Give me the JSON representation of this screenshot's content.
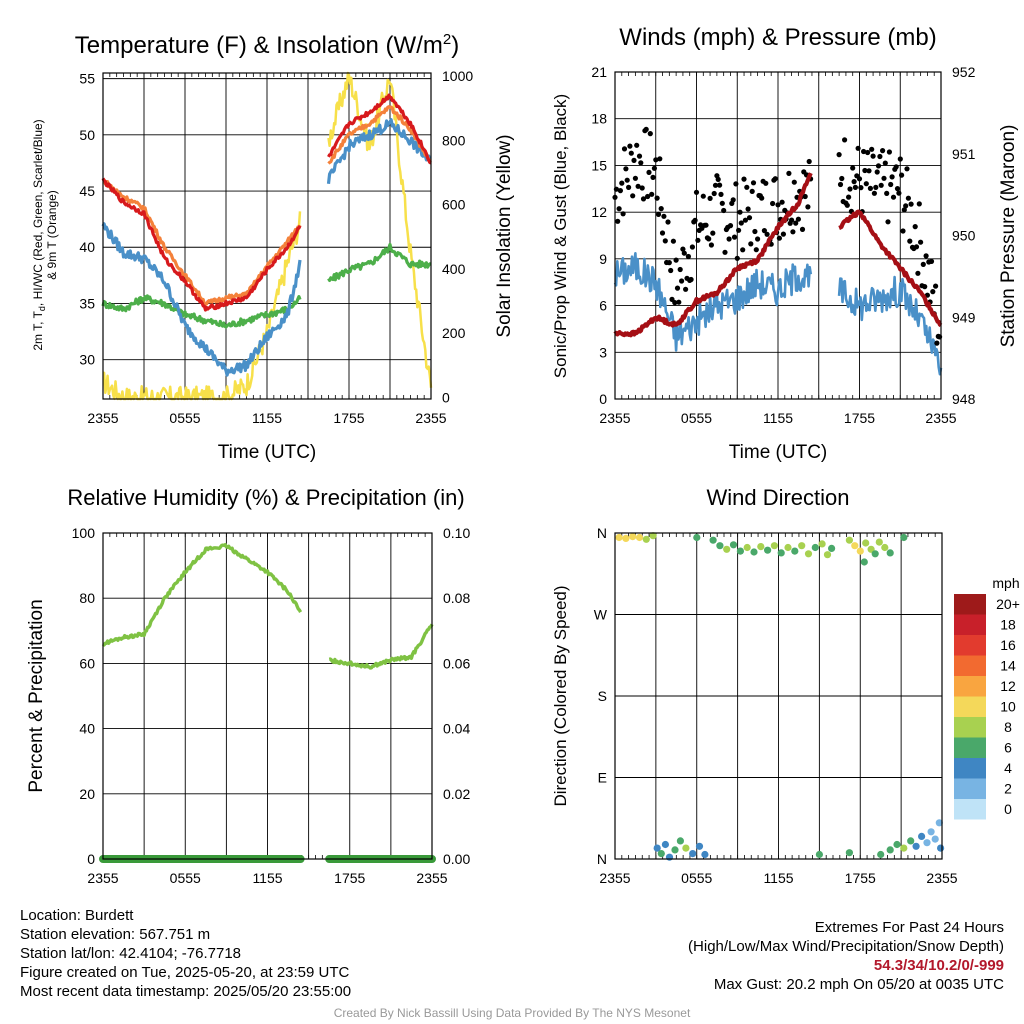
{
  "colors": {
    "red": "#d7191c",
    "orange": "#f4813a",
    "blue": "#4a90c8",
    "green": "#4daf4a",
    "yellow": "#f7e04a",
    "gust": "#000000",
    "pressure": "#a50f15",
    "rh": "#7fc243",
    "precip": "#3a9a3a"
  },
  "panels": {
    "temp": {
      "title": "Temperature (F) & Insolation (W/m",
      "title_sup": "2",
      "title_end": ")",
      "ylabel_line1": "2m T, T",
      "ylabel_line1_sub": "d",
      "ylabel_line1_end": ", HI/WC (Red, Green, Scarlet/Blue)",
      "ylabel_line2": "& 9m T (Orange)",
      "y2label": "Solar Insolation (Yellow)",
      "xlabel": "Time (UTC)"
    },
    "wind": {
      "title": "Winds (mph) & Pressure (mb)",
      "ylabel": "Sonic/Prop Wind & Gust (Blue, Black)",
      "y2label": "Station Pressure (Maroon)",
      "xlabel": "Time (UTC)"
    },
    "rh": {
      "title": "Relative Humidity (%) & Precipitation (in)",
      "ylabel": "Percent & Precipitation"
    },
    "dir": {
      "title": "Wind Direction",
      "ylabel": "Direction (Colored By Speed)"
    }
  },
  "legend": {
    "title": "mph",
    "labels": [
      "20+",
      "18",
      "16",
      "14",
      "12",
      "10",
      "8",
      "6",
      "4",
      "2",
      "0"
    ],
    "colors": [
      "#9e1a1a",
      "#c8202a",
      "#e23b2e",
      "#f26a30",
      "#f9a540",
      "#f4d85a",
      "#a8d150",
      "#4aa86a",
      "#3f86c3",
      "#78b4e3",
      "#bfe3f7"
    ]
  },
  "info": {
    "location": "Location: Burdett",
    "elevation": "Station elevation: 567.751 m",
    "latlon": "Station lat/lon: 42.4104; -76.7718",
    "created": "Figure created on Tue, 2025-05-20, at 23:59 UTC",
    "recent": "Most recent data timestamp: 2025/05/20 23:55:00",
    "extremes_title": "Extremes For Past 24 Hours",
    "extremes_sub": "(High/Low/Max Wind/Precipitation/Snow Depth)",
    "extremes_values": "54.3/34/10.2/0/-999",
    "max_gust": "Max Gust: 20.2 mph On 05/20 at 0035 UTC"
  },
  "credit": "Created By Nick Bassill Using Data Provided By The NYS Mesonet",
  "chart_data": [
    {
      "type": "line",
      "title": "Temperature (F) & Insolation (W/m2)",
      "xlabel": "Time (UTC)",
      "ylabel": "2m T, Td, HI/WC (Red, Green, Scarlet/Blue) & 9m T (Orange)",
      "y2label": "Solar Insolation (Yellow)",
      "x_ticks": [
        "2355",
        "0555",
        "1155",
        "1755",
        "2355"
      ],
      "x_hours": [
        0,
        1.5,
        3,
        4.5,
        6,
        7.5,
        9,
        10.5,
        12,
        13.5,
        14.5,
        15.5,
        16.5,
        18,
        19.5,
        21,
        22.5,
        24
      ],
      "y_ticks": [
        30,
        35,
        40,
        45,
        50,
        55
      ],
      "ylim": [
        26.5,
        55.5
      ],
      "y2_ticks": [
        0,
        200,
        400,
        600,
        800,
        1000
      ],
      "y2lim": [
        -5,
        1010
      ],
      "grid": true,
      "series": [
        {
          "name": "2m T (Red)",
          "color_key": "red",
          "values": [
            46,
            44,
            43,
            39,
            37,
            34.5,
            35,
            35.5,
            38,
            40,
            42,
            null,
            48,
            51,
            52,
            53.5,
            51,
            47.5
          ]
        },
        {
          "name": "9m T (Orange)",
          "color_key": "orange",
          "values": [
            46,
            44.5,
            43.5,
            40,
            37.5,
            35,
            35.5,
            35.8,
            38.3,
            40.5,
            42.2,
            null,
            47.5,
            50,
            51,
            52.5,
            50.5,
            47.5
          ]
        },
        {
          "name": "HI/WC (Blue)",
          "color_key": "blue",
          "values": [
            42,
            39.5,
            39,
            37,
            33,
            31,
            29,
            29.5,
            32,
            34,
            39,
            null,
            46,
            49,
            50,
            51,
            49.5,
            47.5
          ]
        },
        {
          "name": "Td (Green)",
          "color_key": "green",
          "values": [
            35,
            34.5,
            35.5,
            35,
            34,
            33.5,
            33,
            33.5,
            34,
            34.5,
            35.5,
            null,
            37,
            38,
            38.5,
            40,
            38.5,
            38.5
          ]
        },
        {
          "name": "Solar Insolation (Yellow)",
          "color_key": "yellow",
          "axis": "y2",
          "values": [
            50,
            0,
            0,
            0,
            0,
            0,
            0,
            40,
            200,
            420,
            560,
            null,
            800,
            1000,
            780,
            1000,
            450,
            30
          ]
        }
      ]
    },
    {
      "type": "line",
      "title": "Winds (mph) & Pressure (mb)",
      "xlabel": "Time (UTC)",
      "ylabel": "Sonic/Prop Wind & Gust (Blue, Black)",
      "y2label": "Station Pressure (Maroon)",
      "x_ticks": [
        "2355",
        "0555",
        "1155",
        "1755",
        "2355"
      ],
      "x_hours": [
        0,
        1.5,
        3,
        4.5,
        6,
        7.5,
        9,
        10.5,
        12,
        13.5,
        14.5,
        15.5,
        16.5,
        18,
        19.5,
        21,
        22.5,
        24
      ],
      "y_ticks": [
        0,
        3,
        6,
        9,
        12,
        15,
        18,
        21
      ],
      "ylim": [
        0,
        21
      ],
      "y2_ticks": [
        948,
        949,
        950,
        951,
        952
      ],
      "y2lim": [
        948,
        952
      ],
      "grid": true,
      "series": [
        {
          "name": "Sonic/Prop Wind (Blue)",
          "color_key": "blue",
          "values": [
            8,
            8.5,
            7.5,
            4,
            5,
            6,
            6.5,
            7.5,
            7,
            8,
            7.5,
            null,
            7,
            6,
            6.5,
            7,
            5,
            2
          ]
        },
        {
          "name": "Gust (Black)",
          "color_key": "gust",
          "render": "dots",
          "values": [
            13,
            15.5,
            14.5,
            7,
            11,
            12,
            11.5,
            12,
            12.5,
            13.5,
            13,
            null,
            15,
            14,
            13.5,
            13.5,
            10,
            4
          ]
        },
        {
          "name": "Station Pressure (Maroon)",
          "color_key": "pressure",
          "axis": "y2",
          "values": [
            948.8,
            948.8,
            949,
            948.9,
            949.2,
            949.3,
            949.6,
            949.7,
            950.1,
            950.4,
            950.8,
            null,
            950.1,
            950.3,
            949.9,
            949.6,
            949.3,
            948.9
          ]
        }
      ]
    },
    {
      "type": "line",
      "title": "Relative Humidity (%) & Precipitation (in)",
      "ylabel": "Percent & Precipitation",
      "x_ticks": [
        "2355",
        "0555",
        "1155",
        "1755",
        "2355"
      ],
      "x_hours": [
        0,
        1.5,
        3,
        4.5,
        6,
        7.5,
        9,
        10.5,
        12,
        13.5,
        14.5,
        15.5,
        16.5,
        18,
        19.5,
        21,
        22.5,
        24
      ],
      "y_ticks": [
        0,
        20,
        40,
        60,
        80,
        100
      ],
      "ylim": [
        0,
        100
      ],
      "y2_ticks": [
        "0.00",
        "0.02",
        "0.04",
        "0.06",
        "0.08",
        "0.10"
      ],
      "y2lim": [
        0,
        0.1
      ],
      "grid": true,
      "series": [
        {
          "name": "RH (%)",
          "color_key": "rh",
          "values": [
            66,
            68,
            69,
            80,
            88,
            95,
            96,
            92,
            88,
            82,
            75,
            null,
            61,
            60,
            59,
            61,
            62,
            72
          ]
        },
        {
          "name": "Precipitation (in)",
          "color_key": "precip",
          "axis": "y2",
          "values": [
            0,
            0,
            0,
            0,
            0,
            0,
            0,
            0,
            0,
            0,
            0,
            null,
            0,
            0,
            0,
            0,
            0,
            0
          ]
        }
      ]
    },
    {
      "type": "scatter",
      "title": "Wind Direction",
      "ylabel": "Direction (Colored By Speed)",
      "x_ticks": [
        "2355",
        "0555",
        "1155",
        "1755",
        "2355"
      ],
      "y_ticks": [
        "N",
        "E",
        "S",
        "W",
        "N"
      ],
      "ylim_degrees": [
        0,
        360
      ],
      "grid": true,
      "legend": "right",
      "points": [
        {
          "h": 0.3,
          "dir": 355,
          "mph": 9
        },
        {
          "h": 0.8,
          "dir": 354,
          "mph": 10
        },
        {
          "h": 1.3,
          "dir": 356,
          "mph": 9
        },
        {
          "h": 1.8,
          "dir": 355,
          "mph": 10
        },
        {
          "h": 2.3,
          "dir": 353,
          "mph": 8
        },
        {
          "h": 2.8,
          "dir": 357,
          "mph": 7
        },
        {
          "h": 3.1,
          "dir": 12,
          "mph": 4
        },
        {
          "h": 3.4,
          "dir": 6,
          "mph": 5
        },
        {
          "h": 3.7,
          "dir": 16,
          "mph": 4
        },
        {
          "h": 4.0,
          "dir": 2,
          "mph": 4
        },
        {
          "h": 4.4,
          "dir": 10,
          "mph": 5
        },
        {
          "h": 4.8,
          "dir": 20,
          "mph": 6
        },
        {
          "h": 5.2,
          "dir": 12,
          "mph": 7
        },
        {
          "h": 5.7,
          "dir": 6,
          "mph": 4
        },
        {
          "h": 6.2,
          "dir": 14,
          "mph": 4
        },
        {
          "h": 6.6,
          "dir": 5,
          "mph": 3
        },
        {
          "h": 6.0,
          "dir": 355,
          "mph": 6
        },
        {
          "h": 7.2,
          "dir": 352,
          "mph": 5
        },
        {
          "h": 7.7,
          "dir": 346,
          "mph": 6
        },
        {
          "h": 8.2,
          "dir": 342,
          "mph": 7
        },
        {
          "h": 8.7,
          "dir": 347,
          "mph": 6
        },
        {
          "h": 9.2,
          "dir": 340,
          "mph": 5
        },
        {
          "h": 9.7,
          "dir": 344,
          "mph": 7
        },
        {
          "h": 10.2,
          "dir": 339,
          "mph": 6
        },
        {
          "h": 10.7,
          "dir": 345,
          "mph": 8
        },
        {
          "h": 11.2,
          "dir": 341,
          "mph": 6
        },
        {
          "h": 11.7,
          "dir": 346,
          "mph": 7
        },
        {
          "h": 12.2,
          "dir": 338,
          "mph": 6
        },
        {
          "h": 12.7,
          "dir": 344,
          "mph": 8
        },
        {
          "h": 13.2,
          "dir": 340,
          "mph": 5
        },
        {
          "h": 13.7,
          "dir": 346,
          "mph": 7
        },
        {
          "h": 14.2,
          "dir": 337,
          "mph": 8
        },
        {
          "h": 14.7,
          "dir": 344,
          "mph": 6
        },
        {
          "h": 15.2,
          "dir": 348,
          "mph": 7
        },
        {
          "h": 15.6,
          "dir": 336,
          "mph": 8
        },
        {
          "h": 15.9,
          "dir": 343,
          "mph": 6
        },
        {
          "h": 17.2,
          "dir": 352,
          "mph": 7
        },
        {
          "h": 17.6,
          "dir": 346,
          "mph": 9
        },
        {
          "h": 18.0,
          "dir": 340,
          "mph": 10
        },
        {
          "h": 18.4,
          "dir": 349,
          "mph": 8
        },
        {
          "h": 18.8,
          "dir": 342,
          "mph": 7
        },
        {
          "h": 19.1,
          "dir": 337,
          "mph": 6
        },
        {
          "h": 19.4,
          "dir": 350,
          "mph": 8
        },
        {
          "h": 19.8,
          "dir": 344,
          "mph": 7
        },
        {
          "h": 20.2,
          "dir": 338,
          "mph": 6
        },
        {
          "h": 18.3,
          "dir": 328,
          "mph": 6
        },
        {
          "h": 21.2,
          "dir": 355,
          "mph": 5
        },
        {
          "h": 15.0,
          "dir": 5,
          "mph": 6
        },
        {
          "h": 17.2,
          "dir": 7,
          "mph": 5
        },
        {
          "h": 19.5,
          "dir": 5,
          "mph": 6
        },
        {
          "h": 20.2,
          "dir": 10,
          "mph": 5
        },
        {
          "h": 20.7,
          "dir": 16,
          "mph": 6
        },
        {
          "h": 21.2,
          "dir": 12,
          "mph": 7
        },
        {
          "h": 21.7,
          "dir": 20,
          "mph": 5
        },
        {
          "h": 22.1,
          "dir": 14,
          "mph": 4
        },
        {
          "h": 22.5,
          "dir": 25,
          "mph": 3
        },
        {
          "h": 22.9,
          "dir": 18,
          "mph": 2
        },
        {
          "h": 23.2,
          "dir": 30,
          "mph": 2
        },
        {
          "h": 23.5,
          "dir": 22,
          "mph": 1
        },
        {
          "h": 23.8,
          "dir": 40,
          "mph": 1
        },
        {
          "h": 23.9,
          "dir": 12,
          "mph": 3
        }
      ]
    }
  ]
}
